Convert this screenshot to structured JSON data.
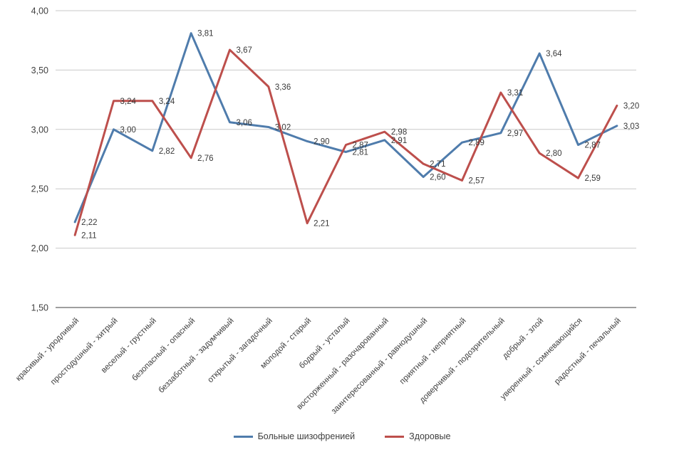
{
  "chart_data": {
    "type": "line",
    "title": "",
    "xlabel": "",
    "ylabel": "",
    "ylim": [
      1.5,
      4.0
    ],
    "grid": true,
    "legend_position": "bottom",
    "y_axis": {
      "tick_values": [
        4.0,
        3.5,
        3.0,
        2.5,
        2.0,
        1.5
      ],
      "tick_labels": [
        "4,00",
        "3,50",
        "3,00",
        "2,50",
        "2,00",
        "1,50"
      ]
    },
    "categories": [
      "красивый - уродливый",
      "простодушный - хитрый",
      "веселый - грустный",
      "безопасный - опасный",
      "беззаботный - задумчивый",
      "открытый - загадочный",
      "молодой - старый",
      "бодрый - усталый",
      "восторженный - разочарованный",
      "заинтересованный - равнодушный",
      "приятный - неприятный",
      "доверчивый - подозрительный",
      "добрый - злой",
      "уверенный - сомневающийся",
      "радостный - печальный"
    ],
    "series": [
      {
        "name": "Больные шизофренией",
        "color": "#4f7cac",
        "values": [
          2.22,
          3.0,
          2.82,
          3.81,
          3.06,
          3.02,
          2.9,
          2.81,
          2.91,
          2.6,
          2.89,
          2.97,
          3.64,
          2.87,
          3.03
        ],
        "labels": [
          "2,22",
          "3,00",
          "2,82",
          "3,81",
          "3,06",
          "3,02",
          "2,90",
          "2,81",
          "2,91",
          "2,60",
          "2,89",
          "2,97",
          "3,64",
          "2,87",
          "3,03"
        ]
      },
      {
        "name": "Здоровые",
        "color": "#bd4f4c",
        "values": [
          2.11,
          3.24,
          3.24,
          2.76,
          3.67,
          3.36,
          2.21,
          2.87,
          2.98,
          2.71,
          2.57,
          3.31,
          2.8,
          2.59,
          3.2
        ],
        "labels": [
          "2,11",
          "3,24",
          "3,24",
          "2,76",
          "3,67",
          "3,36",
          "2,21",
          "2,87",
          "2,98",
          "2,71",
          "2,57",
          "3,31",
          "2,80",
          "2,59",
          "3,20"
        ]
      }
    ],
    "colors": {
      "gridline": "#c9c9c9",
      "axis_line": "#9f9f9f",
      "text": "#3f3f3f",
      "data_label": "#3a3a3a"
    }
  }
}
